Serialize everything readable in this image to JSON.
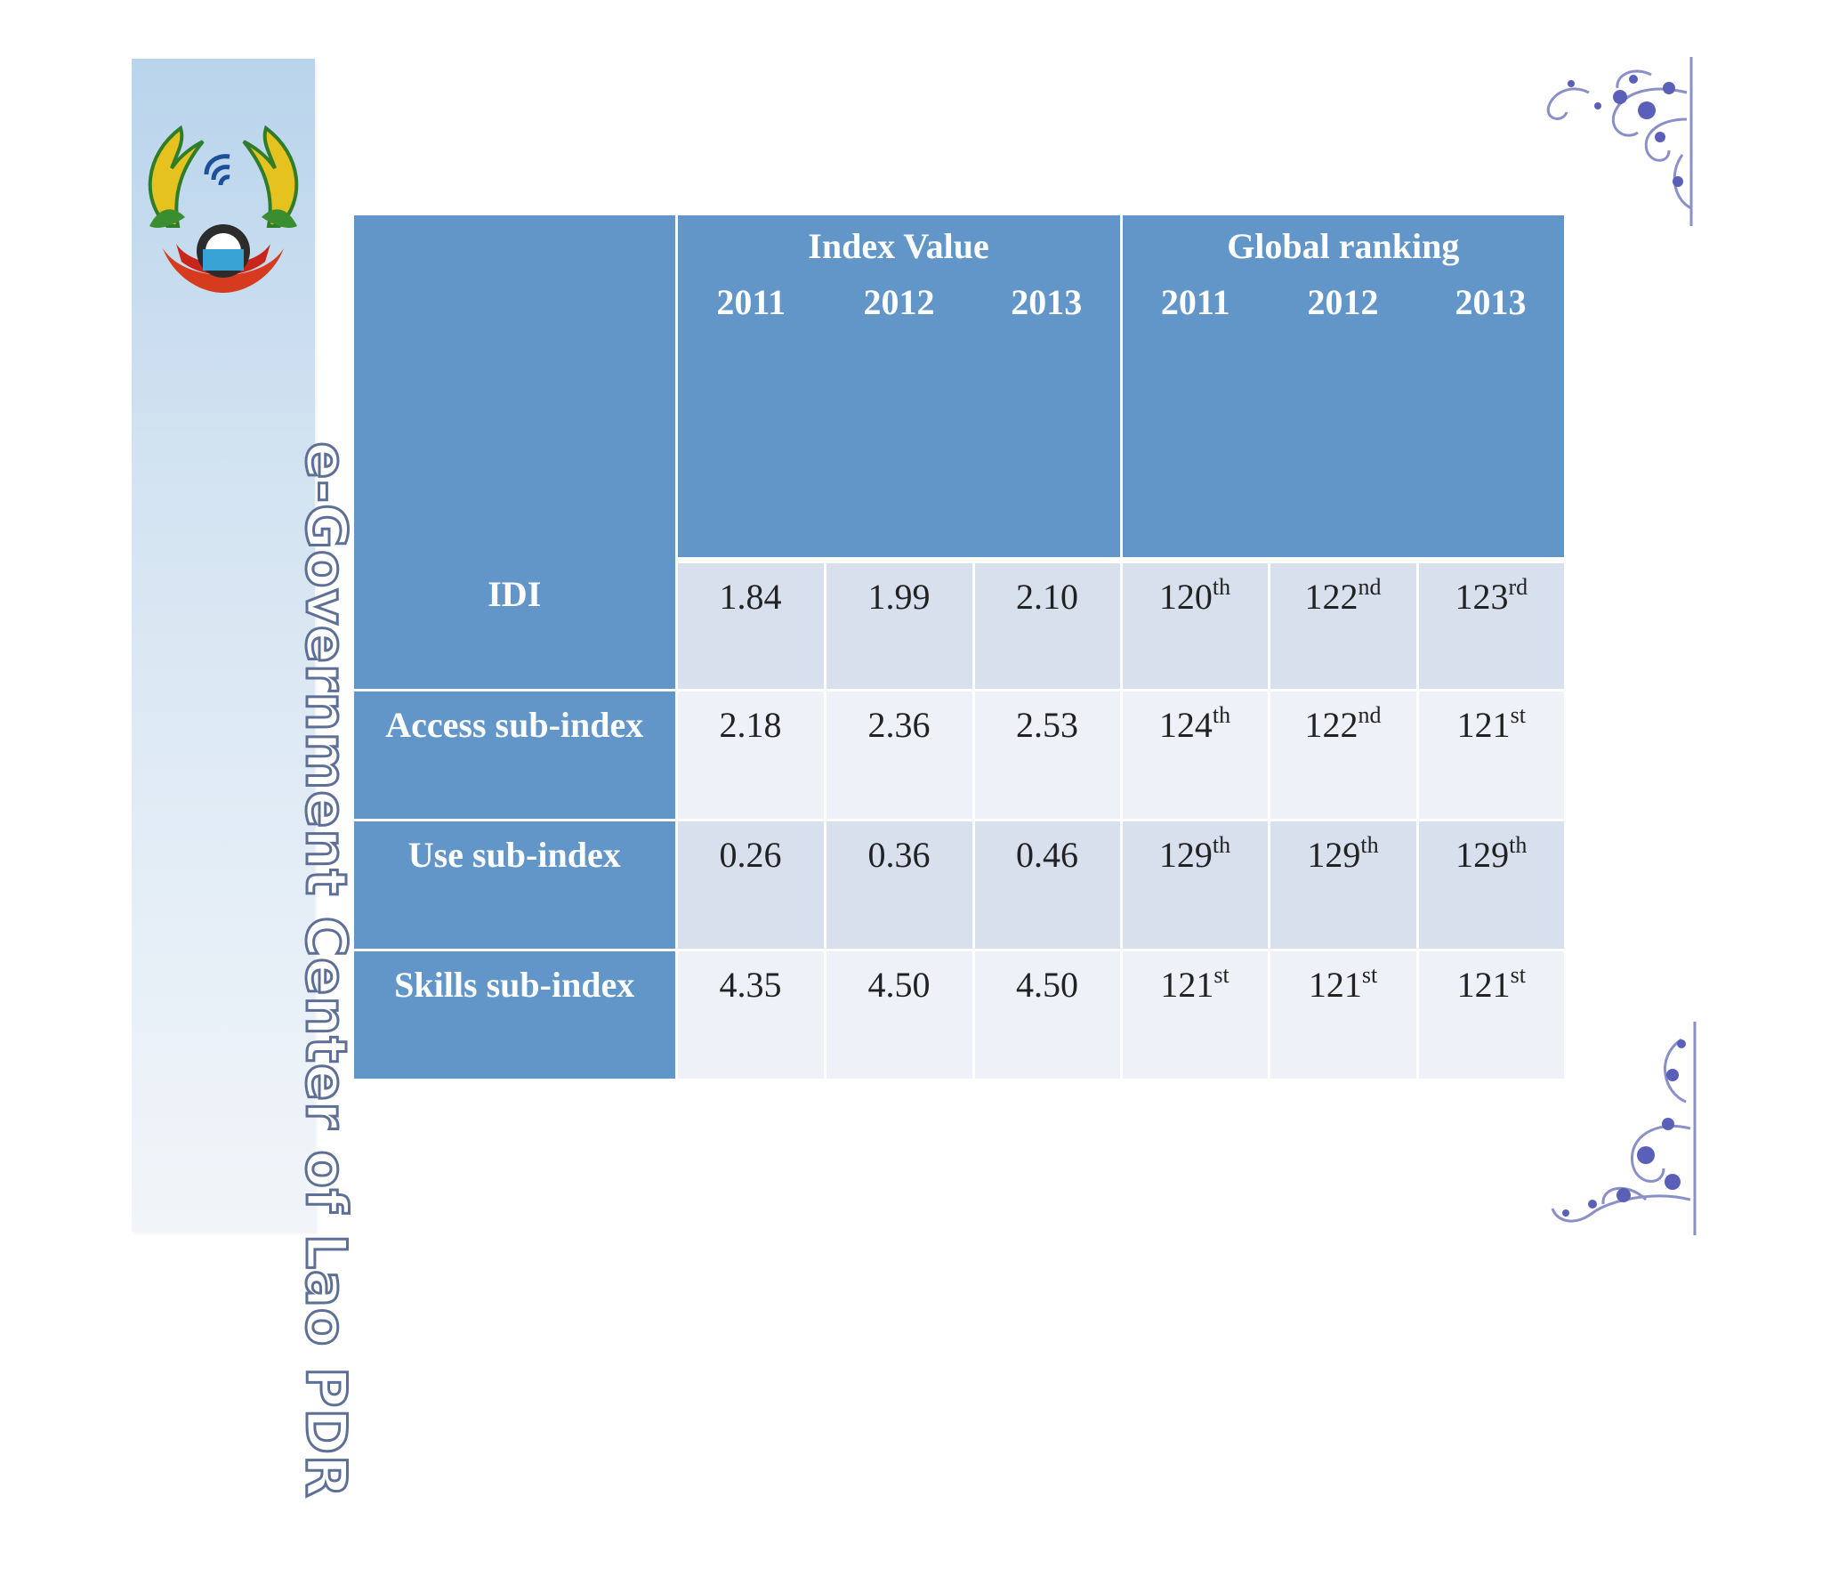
{
  "banner": {
    "title": "e-Government Center of Lao PDR",
    "emblem_icon": "lao-pdr-emblem-icon"
  },
  "ornaments": [
    "floral-corner-icon",
    "floral-corner-icon"
  ],
  "table": {
    "groups": [
      {
        "label": "Index Value",
        "years": [
          "2011",
          "2012",
          "2013"
        ]
      },
      {
        "label": "Global ranking",
        "years": [
          "2011",
          "2012",
          "2013"
        ]
      }
    ],
    "rows": [
      {
        "label": "IDI",
        "values": [
          "1.84",
          "1.99",
          "2.10"
        ],
        "ranks": [
          {
            "num": "120",
            "suffix": "th"
          },
          {
            "num": "122",
            "suffix": "nd"
          },
          {
            "num": "123",
            "suffix": "rd"
          }
        ]
      },
      {
        "label": "Access sub-index",
        "values": [
          "2.18",
          "2.36",
          "2.53"
        ],
        "ranks": [
          {
            "num": "124",
            "suffix": "th"
          },
          {
            "num": "122",
            "suffix": "nd"
          },
          {
            "num": "121",
            "suffix": "st"
          }
        ]
      },
      {
        "label": "Use sub-index",
        "values": [
          "0.26",
          "0.36",
          "0.46"
        ],
        "ranks": [
          {
            "num": "129",
            "suffix": "th"
          },
          {
            "num": "129",
            "suffix": "th"
          },
          {
            "num": "129",
            "suffix": "th"
          }
        ]
      },
      {
        "label": "Skills sub-index",
        "values": [
          "4.35",
          "4.50",
          "4.50"
        ],
        "ranks": [
          {
            "num": "121",
            "suffix": "st"
          },
          {
            "num": "121",
            "suffix": "st"
          },
          {
            "num": "121",
            "suffix": "st"
          }
        ]
      }
    ]
  },
  "colors": {
    "header_blue": "#6296c9",
    "row_shade_dark": "#d8e0ee",
    "row_shade_light": "#eef1f8",
    "banner_text_outline": "#5e6f96"
  }
}
